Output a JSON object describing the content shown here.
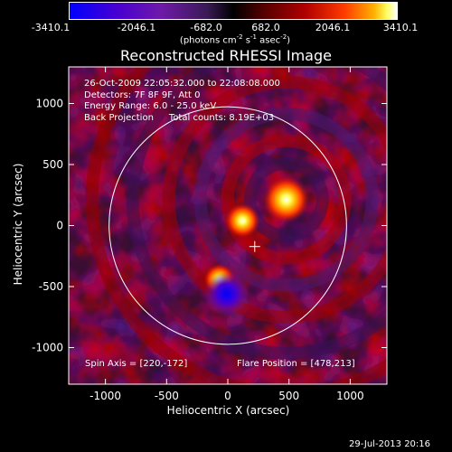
{
  "colorbar": {
    "ticks": [
      "-3410.1",
      "-2046.1",
      "-682.0",
      "682.0",
      "2046.1",
      "3410.1"
    ],
    "tick_values": [
      -3410.1,
      -2046.1,
      -682.0,
      682.0,
      2046.1,
      3410.1
    ],
    "unit_main": "(photons cm",
    "unit_sup1": "-2",
    "unit_mid1": " s",
    "unit_sup2": "-1",
    "unit_mid2": " asec",
    "unit_sup3": "-2",
    "unit_end": ")"
  },
  "chart_data": {
    "type": "heatmap",
    "title": "Reconstructed RHESSI Image",
    "xlabel": "Heliocentric X (arcsec)",
    "ylabel": "Heliocentric Y (arcsec)",
    "xlim": [
      -1300,
      1300
    ],
    "ylim": [
      -1300,
      1300
    ],
    "xticks": [
      "-1000",
      "-500",
      "0",
      "500",
      "1000"
    ],
    "xtick_values": [
      -1000,
      -500,
      0,
      500,
      1000
    ],
    "yticks": [
      "1000",
      "500",
      "0",
      "-500",
      "-1000"
    ],
    "ytick_values": [
      1000,
      500,
      0,
      -500,
      -1000
    ],
    "colorbar_range": [
      -3410.1,
      3410.1
    ],
    "annotations": {
      "time_range": "26-Oct-2009 22:05:32.000 to 22:08:08.000",
      "detectors": "Detectors: 7F 8F 9F, Att 0",
      "energy": "Energy Range: 6.0 - 25.0 keV",
      "method": "Back Projection",
      "counts": "Total counts: 8.19E+03",
      "spin_axis": "Spin Axis = [220,-172]",
      "flare_position": "Flare Position = [478,213]"
    },
    "solar_limb_radius": 970,
    "sources": [
      {
        "x": 478,
        "y": 213,
        "value": 3410.1
      },
      {
        "x": 120,
        "y": 40,
        "value": 2200
      },
      {
        "x": -70,
        "y": -440,
        "value": 1800
      },
      {
        "x": -10,
        "y": -560,
        "value": -3200
      }
    ],
    "cross_marker": {
      "x": 220,
      "y": -172
    }
  },
  "footer": {
    "date": "29-Jul-2013 20:16"
  }
}
